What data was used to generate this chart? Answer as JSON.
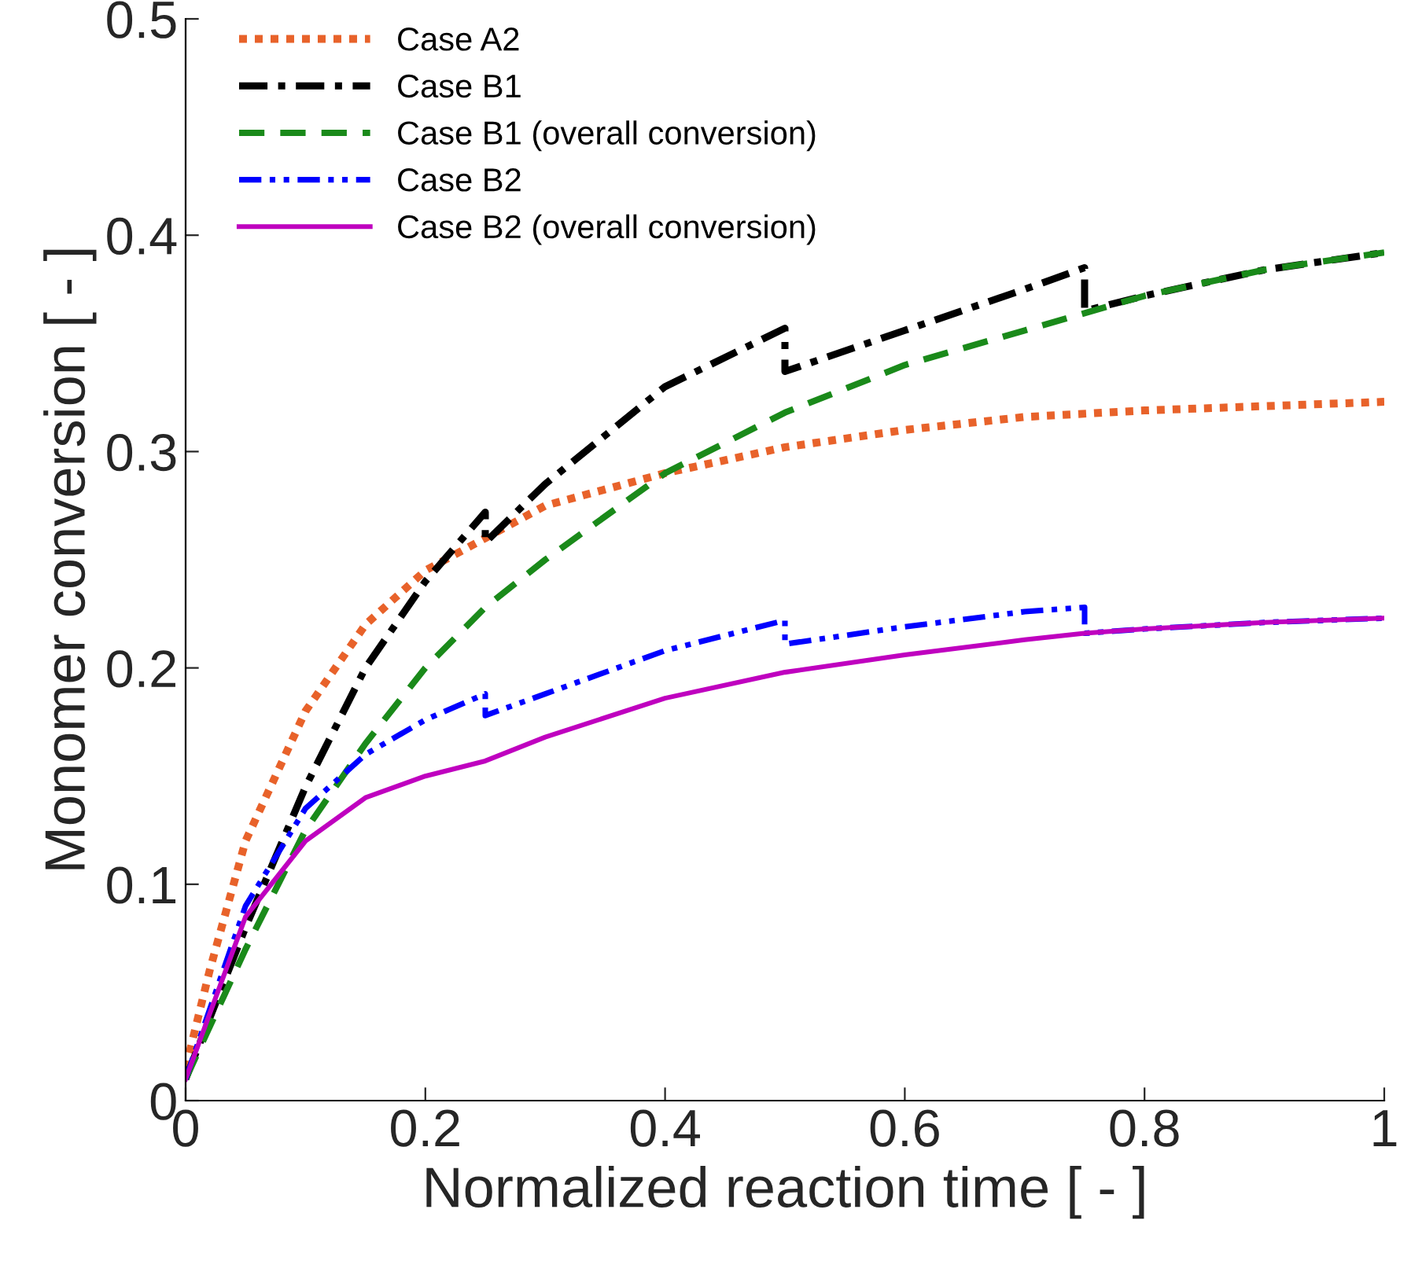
{
  "chart_data": {
    "type": "line",
    "xlabel": "Normalized reaction time [ - ]",
    "ylabel": "Monomer conversion [ - ]",
    "xlim": [
      0,
      1
    ],
    "ylim": [
      0,
      0.5
    ],
    "xticks": [
      0,
      0.2,
      0.4,
      0.6,
      0.8,
      1
    ],
    "yticks": [
      0,
      0.1,
      0.2,
      0.3,
      0.4,
      0.5
    ],
    "grid": false,
    "legend": "top left",
    "marker": "none",
    "series": [
      {
        "name": "Case A2",
        "color": "#e8622a",
        "line_style": "dotted",
        "x": [
          0,
          0.02,
          0.05,
          0.1,
          0.15,
          0.2,
          0.25,
          0.3,
          0.4,
          0.5,
          0.6,
          0.7,
          0.8,
          0.9,
          1
        ],
        "values": [
          0.015,
          0.06,
          0.12,
          0.18,
          0.22,
          0.245,
          0.26,
          0.275,
          0.29,
          0.302,
          0.31,
          0.316,
          0.319,
          0.321,
          0.323
        ]
      },
      {
        "name": "Case B1",
        "color": "#000000",
        "line_style": "dashdot",
        "x": [
          0,
          0.05,
          0.1,
          0.15,
          0.2,
          0.25,
          0.25,
          0.3,
          0.4,
          0.5,
          0.5,
          0.6,
          0.7,
          0.75,
          0.75,
          0.8,
          0.9,
          1
        ],
        "values": [
          0.01,
          0.08,
          0.145,
          0.2,
          0.24,
          0.272,
          0.258,
          0.285,
          0.33,
          0.357,
          0.337,
          0.356,
          0.375,
          0.385,
          0.365,
          0.372,
          0.384,
          0.392
        ]
      },
      {
        "name": "Case B1 (overall conversion)",
        "color": "#1a8a1a",
        "line_style": "dashed",
        "x": [
          0,
          0.05,
          0.1,
          0.15,
          0.2,
          0.25,
          0.3,
          0.4,
          0.5,
          0.6,
          0.7,
          0.75,
          0.8,
          0.9,
          1
        ],
        "values": [
          0.01,
          0.07,
          0.125,
          0.165,
          0.2,
          0.228,
          0.25,
          0.29,
          0.318,
          0.34,
          0.356,
          0.364,
          0.372,
          0.384,
          0.392
        ]
      },
      {
        "name": "Case B2",
        "color": "#0000ff",
        "line_style": "dashdotdot",
        "x": [
          0,
          0.05,
          0.1,
          0.15,
          0.2,
          0.25,
          0.25,
          0.3,
          0.4,
          0.5,
          0.5,
          0.6,
          0.7,
          0.75,
          0.75,
          0.8,
          0.9,
          1
        ],
        "values": [
          0.01,
          0.09,
          0.135,
          0.16,
          0.176,
          0.188,
          0.178,
          0.188,
          0.208,
          0.222,
          0.211,
          0.219,
          0.226,
          0.228,
          0.216,
          0.218,
          0.221,
          0.223
        ]
      },
      {
        "name": "Case B2 (overall conversion)",
        "color": "#bf00bf",
        "line_style": "solid",
        "x": [
          0,
          0.05,
          0.1,
          0.15,
          0.2,
          0.25,
          0.3,
          0.4,
          0.5,
          0.6,
          0.7,
          0.75,
          0.8,
          0.9,
          1
        ],
        "values": [
          0.01,
          0.085,
          0.12,
          0.14,
          0.15,
          0.157,
          0.168,
          0.186,
          0.198,
          0.206,
          0.213,
          0.216,
          0.218,
          0.221,
          0.223
        ]
      }
    ]
  }
}
